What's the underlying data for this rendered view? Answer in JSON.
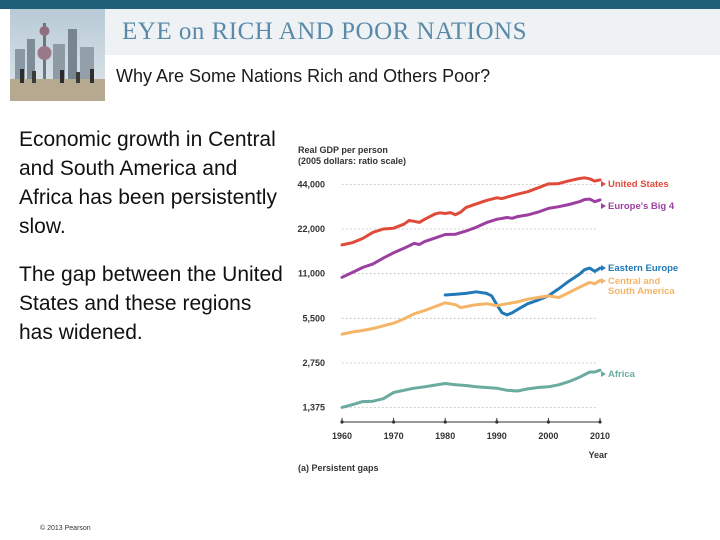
{
  "header": {
    "title": "EYE on RICH AND POOR NATIONS"
  },
  "subtitle": "Why Are Some Nations Rich and Others Poor?",
  "body": {
    "paragraph1": "Economic growth in Central and South America and Africa has been persistently slow.",
    "paragraph2": "The gap between the United States and these regions has widened."
  },
  "footer": {
    "copyright": "© 2013 Pearson"
  },
  "colors": {
    "united_states": "#e04a3a",
    "europes_big4": "#9b3fa0",
    "eastern_europe": "#2179b8",
    "central_south_america": "#f5b567",
    "africa": "#6aaba0",
    "header_band": "#1f5f78"
  },
  "chart_data": {
    "type": "line",
    "title": "Real GDP per person",
    "subtitle": "(2005 dollars: ratio scale)",
    "xlabel": "Year",
    "ylabel": "",
    "caption": "(a) Persistent gaps",
    "scale": "log",
    "xlim": [
      1960,
      2010
    ],
    "ylim": [
      1100,
      55000
    ],
    "x_ticks": [
      1960,
      1970,
      1980,
      1990,
      2000,
      2010
    ],
    "y_ticks": [
      1375,
      2750,
      5500,
      11000,
      22000,
      44000
    ],
    "y_tick_labels": [
      "1,375",
      "2,750",
      "5,500",
      "11,000",
      "22,000",
      "44,000"
    ],
    "series": [
      {
        "name": "United States",
        "key": "united_states",
        "x": [
          1960,
          1962,
          1964,
          1966,
          1968,
          1970,
          1972,
          1973,
          1974,
          1975,
          1976,
          1978,
          1979,
          1980,
          1981,
          1982,
          1983,
          1984,
          1986,
          1988,
          1990,
          1991,
          1992,
          1994,
          1996,
          1998,
          2000,
          2001,
          2002,
          2004,
          2006,
          2007,
          2008,
          2009,
          2010
        ],
        "values": [
          17200,
          17800,
          19000,
          20900,
          22000,
          22300,
          23700,
          25100,
          24800,
          24400,
          25600,
          27800,
          28300,
          28000,
          28400,
          27500,
          28600,
          30700,
          32500,
          34300,
          35700,
          35300,
          36100,
          37800,
          39300,
          41700,
          44300,
          44300,
          44500,
          46500,
          48200,
          48700,
          48000,
          46300,
          47200
        ]
      },
      {
        "name": "Europe's Big 4",
        "key": "europes_big4",
        "x": [
          1960,
          1962,
          1964,
          1966,
          1968,
          1970,
          1972,
          1974,
          1975,
          1976,
          1978,
          1980,
          1982,
          1984,
          1986,
          1988,
          1990,
          1992,
          1993,
          1994,
          1996,
          1998,
          2000,
          2002,
          2004,
          2006,
          2007,
          2008,
          2009,
          2010
        ],
        "values": [
          10400,
          11200,
          12100,
          12800,
          14000,
          15200,
          16300,
          17600,
          17300,
          18100,
          19100,
          20200,
          20300,
          21300,
          22600,
          24300,
          25600,
          26300,
          26000,
          26700,
          27400,
          28600,
          30300,
          31100,
          32200,
          33600,
          34800,
          35000,
          33600,
          34600
        ]
      },
      {
        "name": "Eastern Europe",
        "key": "eastern_europe",
        "x": [
          1980,
          1982,
          1984,
          1986,
          1988,
          1989,
          1990,
          1991,
          1992,
          1993,
          1994,
          1996,
          1998,
          2000,
          2002,
          2004,
          2006,
          2007,
          2008,
          2009,
          2010
        ],
        "values": [
          7900,
          8000,
          8100,
          8300,
          8100,
          7800,
          6800,
          6000,
          5800,
          6000,
          6300,
          6900,
          7300,
          7800,
          8700,
          9800,
          10900,
          11700,
          12000,
          11400,
          12000
        ]
      },
      {
        "name": "Central and South America",
        "key": "central_south_america",
        "x": [
          1960,
          1962,
          1964,
          1966,
          1968,
          1970,
          1972,
          1974,
          1976,
          1978,
          1980,
          1982,
          1983,
          1984,
          1986,
          1988,
          1990,
          1992,
          1994,
          1996,
          1998,
          2000,
          2002,
          2004,
          2006,
          2008,
          2009,
          2010
        ],
        "values": [
          4300,
          4450,
          4550,
          4700,
          4900,
          5100,
          5450,
          5900,
          6200,
          6600,
          7000,
          6800,
          6500,
          6600,
          6800,
          6900,
          6700,
          6900,
          7100,
          7400,
          7600,
          7800,
          7600,
          8200,
          8900,
          9600,
          9400,
          9900
        ]
      },
      {
        "name": "Africa",
        "key": "africa",
        "x": [
          1960,
          1962,
          1964,
          1966,
          1968,
          1970,
          1972,
          1974,
          1976,
          1978,
          1980,
          1982,
          1984,
          1986,
          1988,
          1990,
          1992,
          1994,
          1996,
          1998,
          2000,
          2002,
          2004,
          2006,
          2008,
          2009,
          2010
        ],
        "values": [
          1380,
          1440,
          1510,
          1520,
          1580,
          1740,
          1800,
          1860,
          1900,
          1950,
          2000,
          1960,
          1940,
          1900,
          1880,
          1860,
          1800,
          1780,
          1840,
          1880,
          1900,
          1960,
          2060,
          2200,
          2390,
          2390,
          2460
        ]
      }
    ],
    "legend": [
      {
        "label": "United States",
        "key": "united_states"
      },
      {
        "label": "Europe's Big 4",
        "key": "europes_big4"
      },
      {
        "label": "Eastern Europe",
        "key": "eastern_europe"
      },
      {
        "label": "Central and South America",
        "key": "central_south_america"
      },
      {
        "label": "Africa",
        "key": "africa"
      }
    ]
  }
}
